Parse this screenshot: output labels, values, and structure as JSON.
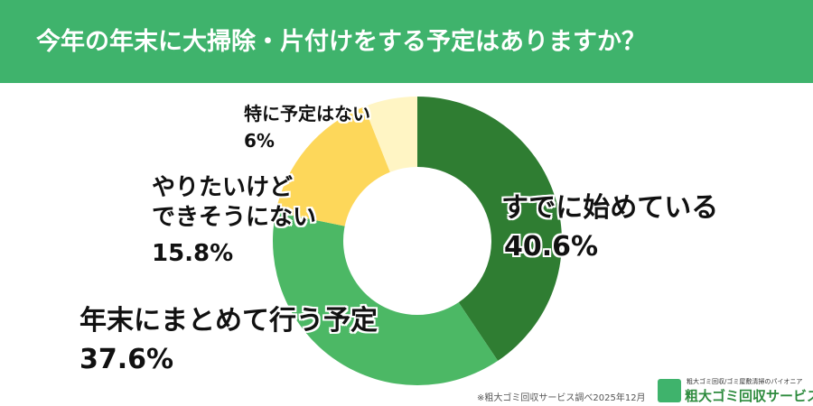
{
  "chart_data": {
    "type": "pie",
    "title": "今年の年末に大掃除・片付けをする予定はありますか？",
    "categories": [
      "すでに始めている",
      "年末にまとめて行う予定",
      "やりたいけど\nできそうにない",
      "特に予定はない"
    ],
    "values": [
      40.6,
      37.6,
      15.8,
      6
    ],
    "value_labels": [
      "40.6%",
      "37.6%",
      "15.8%",
      "6%"
    ],
    "colors": [
      "#2f7d32",
      "#4cb865",
      "#fdd75a",
      "#fff5c4"
    ],
    "source": "※粗大ゴミ回収サービス調べ2025年12月",
    "logo_tagline": "粗大ゴミ回収/ゴミ屋敷清掃のパイオニア",
    "logo": "粗大ゴミ回収サービス"
  }
}
